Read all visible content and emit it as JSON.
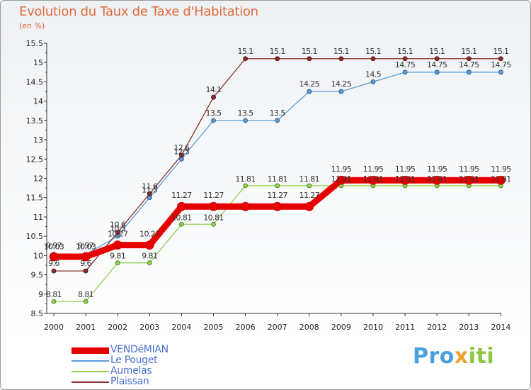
{
  "header": {
    "title": "Evolution du Taux de Taxe d'Habitation",
    "unit": "(en %)"
  },
  "brand": {
    "name": "Proxiti"
  },
  "chart_data": {
    "type": "line",
    "title": "Evolution du Taux de Taxe d'Habitation",
    "ylabel": "(en %)",
    "xlabel": "",
    "x": [
      "2000",
      "2001",
      "2002",
      "2003",
      "2004",
      "2005",
      "2006",
      "2007",
      "2008",
      "2009",
      "2010",
      "2011",
      "2012",
      "2013",
      "2014"
    ],
    "ylim": [
      8.5,
      15.5
    ],
    "yticks": [
      8.5,
      9,
      9.5,
      10,
      10.5,
      11,
      11.5,
      12,
      12.5,
      13,
      13.5,
      14,
      14.5,
      15,
      15.5
    ],
    "grid": false,
    "legend": "bottom-left",
    "series": [
      {
        "name": "VENDéMIAN",
        "color": "#e60000",
        "values": [
          9.97,
          9.97,
          10.27,
          10.27,
          11.27,
          11.27,
          11.27,
          11.27,
          11.27,
          11.95,
          11.95,
          11.95,
          11.95,
          11.95,
          11.95
        ],
        "labels": [
          "9.97",
          "9.97",
          "10.27",
          "10.27",
          "11.27",
          "11.27",
          "",
          "11.27",
          "11.27",
          "11.95",
          "11.95",
          "11.95",
          "11.95",
          "11.95",
          "11.95"
        ]
      },
      {
        "name": "Le Pouget",
        "color": "#5b9bd5",
        "values": [
          10.03,
          10.03,
          10.5,
          11.5,
          12.5,
          13.5,
          13.5,
          13.5,
          14.25,
          14.25,
          14.5,
          14.75,
          14.75,
          14.75,
          14.75
        ],
        "labels": [
          "10.03",
          "10.03",
          "10.5",
          "11.5",
          "12.5",
          "13.5",
          "13.5",
          "13.5",
          "14.25",
          "14.25",
          "14.5",
          "14.75",
          "14.75",
          "14.75",
          "14.75"
        ]
      },
      {
        "name": "Aumelas",
        "color": "#92d050",
        "values": [
          8.81,
          8.81,
          9.81,
          9.81,
          10.81,
          10.81,
          11.81,
          11.81,
          11.81,
          11.81,
          11.81,
          11.81,
          11.81,
          11.81,
          11.81
        ],
        "labels": [
          "8.81",
          "8.81",
          "9.81",
          "9.81",
          "10.81",
          "10.81",
          "11.81",
          "11.81",
          "11.81",
          "11.81",
          "11.81",
          "11.81",
          "11.81",
          "11.81",
          "11.81"
        ]
      },
      {
        "name": "Plaissan",
        "color": "#8b2e2e",
        "values": [
          9.6,
          9.6,
          10.6,
          11.6,
          12.6,
          14.1,
          15.1,
          15.1,
          15.1,
          15.1,
          15.1,
          15.1,
          15.1,
          15.1,
          15.1
        ],
        "labels": [
          "9.6",
          "9.6",
          "10.6",
          "11.6",
          "12.6",
          "14.1",
          "15.1",
          "15.1",
          "15.1",
          "15.1",
          "15.1",
          "15.1",
          "15.1",
          "15.1",
          "15.1"
        ]
      }
    ]
  }
}
